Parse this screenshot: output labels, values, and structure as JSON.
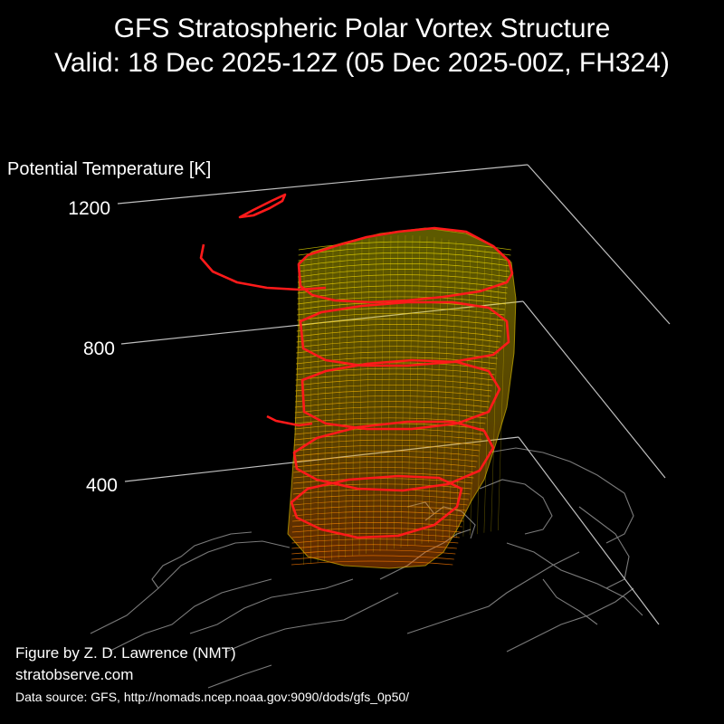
{
  "header": {
    "title_line1": "GFS Stratospheric Polar Vortex Structure",
    "title_line2": "Valid: 18 Dec 2025-12Z  (05 Dec 2025-00Z, FH324)"
  },
  "footer": {
    "credit": "Figure by Z. D. Lawrence (NMT)",
    "website": "stratobserve.com",
    "data_source": "Data source: GFS, http://nomads.ncep.noaa.gov:9090/dods/gfs_0p50/"
  },
  "chart_data": {
    "type": "3d-isosurface",
    "zlabel": "Potential Temperature [K]",
    "z_ticks": [
      400,
      800,
      1200
    ],
    "zlim": [
      300,
      1300
    ],
    "grid": true,
    "colors": {
      "background": "#000000",
      "vortex_upper": "#f2e600",
      "vortex_lower": "#ff7a00",
      "highlight_contour": "#ff1a1a",
      "coastline": "#7a7a7a",
      "axes": "#bfbfbf"
    }
  }
}
